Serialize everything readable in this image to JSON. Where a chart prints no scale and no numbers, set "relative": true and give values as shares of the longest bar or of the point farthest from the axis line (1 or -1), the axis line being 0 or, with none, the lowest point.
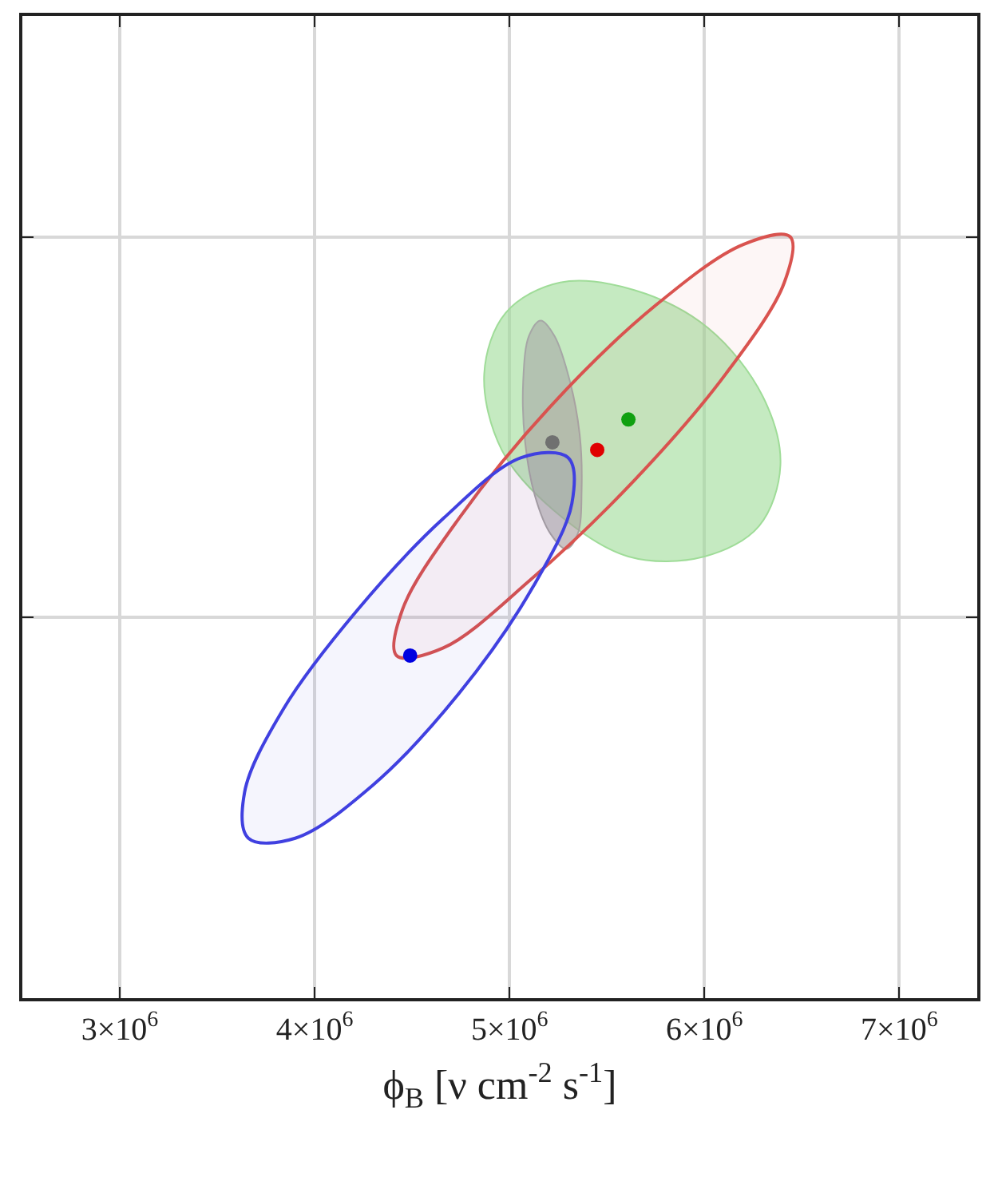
{
  "chart_data": {
    "type": "area",
    "xlabel": "ϕ$_{B}$ [ν cm$^{-2}$ s$^{-1}$]",
    "xlim": [
      2500000,
      7400000
    ],
    "xticks": [
      {
        "value": 3000000,
        "label": "3×10$^{6}$"
      },
      {
        "value": 4000000,
        "label": "4×10$^{6}$"
      },
      {
        "value": 5000000,
        "label": "5×10$^{6}$"
      },
      {
        "value": 6000000,
        "label": "6×10$^{6}$"
      },
      {
        "value": 7000000,
        "label": "7×10$^{6}$"
      }
    ],
    "relative": true,
    "tick_labels": "x",
    "grid": true,
    "series": [
      {
        "color": "#9fdc98",
        "x": [
          6280000,
          6390000,
          6300000,
          6020000,
          5640000,
          5260000,
          4980000,
          4870000,
          4960000,
          5230000,
          5610000,
          6000000,
          6280000
        ],
        "values": [
          0.62,
          0.7,
          0.79,
          0.88,
          0.93,
          0.94,
          0.9,
          0.82,
          0.72,
          0.64,
          0.58,
          0.58,
          0.62
        ]
      },
      {
        "color": "#a6a6a6",
        "x": [
          5160000,
          5230000,
          5310000,
          5360000,
          5370000,
          5350000,
          5290000,
          5210000,
          5130000,
          5080000,
          5070000,
          5100000,
          5160000
        ],
        "values": [
          0.89,
          0.87,
          0.81,
          0.74,
          0.67,
          0.61,
          0.59,
          0.61,
          0.66,
          0.73,
          0.81,
          0.87,
          0.89
        ]
      },
      {
        "color": "#d9534f",
        "x": [
          6440000,
          6410000,
          6110000,
          5640000,
          5110000,
          4660000,
          4420000,
          4450000,
          4740000,
          5220000,
          5750000,
          6200000,
          6440000
        ],
        "values": [
          1.0,
          0.94,
          0.82,
          0.68,
          0.55,
          0.46,
          0.45,
          0.51,
          0.63,
          0.78,
          0.91,
          0.99,
          1.0
        ]
      },
      {
        "color": "#4040e0",
        "x": [
          5300000,
          5320000,
          5120000,
          4740000,
          4300000,
          3900000,
          3660000,
          3640000,
          3840000,
          4220000,
          4660000,
          5060000,
          5300000
        ],
        "values": [
          0.71,
          0.65,
          0.54,
          0.4,
          0.28,
          0.21,
          0.21,
          0.27,
          0.38,
          0.51,
          0.63,
          0.71,
          0.71
        ]
      },
      {
        "type": "scatter",
        "marker": "circle",
        "color": "#707070",
        "x": [
          5220000
        ],
        "values": [
          0.73
        ]
      },
      {
        "type": "scatter",
        "marker": "circle",
        "color": "#e00000",
        "x": [
          5450000
        ],
        "values": [
          0.72
        ]
      },
      {
        "type": "scatter",
        "marker": "circle",
        "color": "#10a010",
        "x": [
          5610000
        ],
        "values": [
          0.76
        ]
      },
      {
        "type": "scatter",
        "marker": "circle",
        "color": "#0000e0",
        "x": [
          4490000
        ],
        "values": [
          0.45
        ]
      }
    ]
  }
}
